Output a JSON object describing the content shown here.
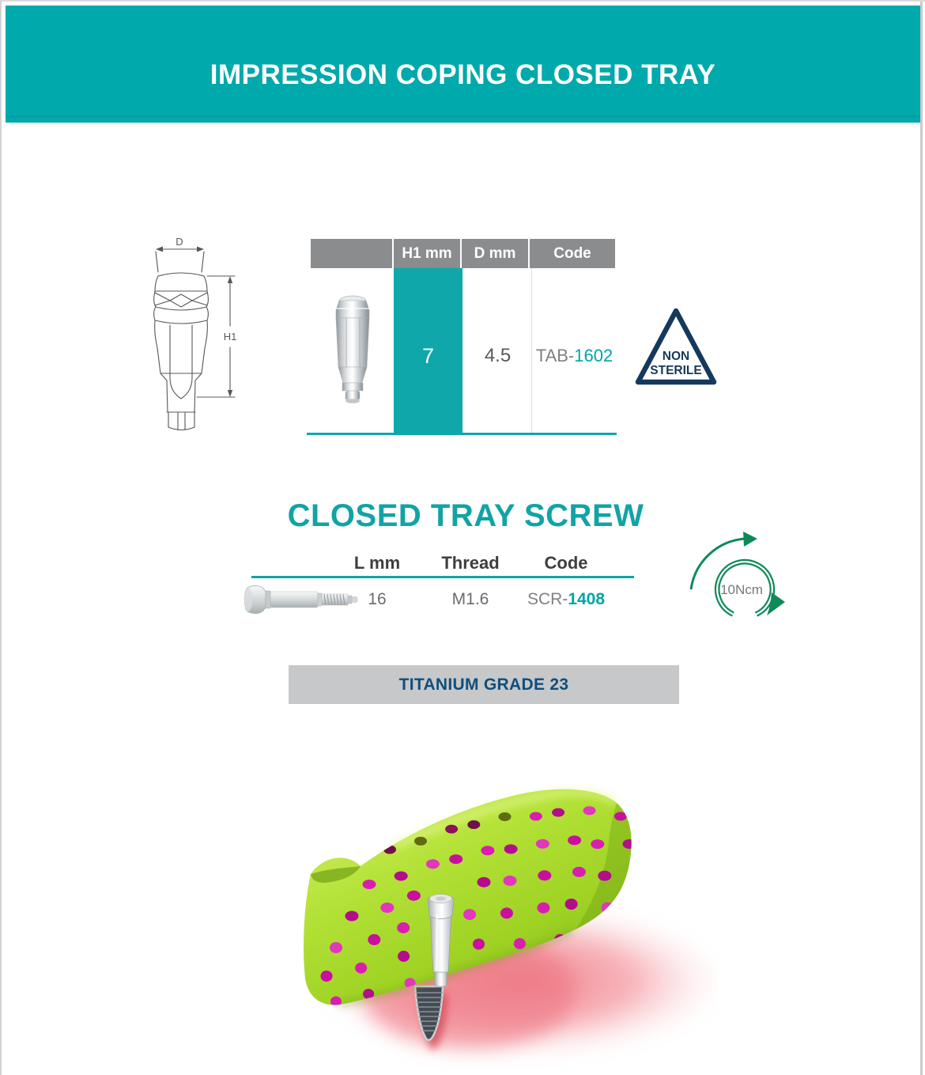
{
  "header": {
    "title": "IMPRESSION COPING CLOSED TRAY"
  },
  "coping": {
    "diagram": {
      "d_label": "D",
      "h1_label": "H1"
    },
    "table": {
      "col_h1": "H1 mm",
      "col_d": "D mm",
      "col_code": "Code",
      "h1_value": "7",
      "d_value": "4.5",
      "code_prefix": "TAB-",
      "code_value": "1602"
    },
    "non_sterile": {
      "line1": "NON",
      "line2": "STERILE"
    }
  },
  "screw": {
    "title": "CLOSED TRAY SCREW",
    "table": {
      "col_l": "L mm",
      "col_thread": "Thread",
      "col_code": "Code",
      "l_value": "16",
      "thread_value": "M1.6",
      "code_prefix": "SCR-",
      "code_value": "1408"
    },
    "torque_label": "10Ncm"
  },
  "material": {
    "label": "TITANIUM GRADE 23"
  },
  "colors": {
    "banner_teal": "#00a9ab",
    "table_teal": "#0fa7aa",
    "teal_text": "#12a3a6",
    "header_gray": "#8a8c8e",
    "navy": "#15395d",
    "material_navy": "#0f4e7c",
    "torque_green": "#0d8a58",
    "dark_text": "#58595b"
  }
}
